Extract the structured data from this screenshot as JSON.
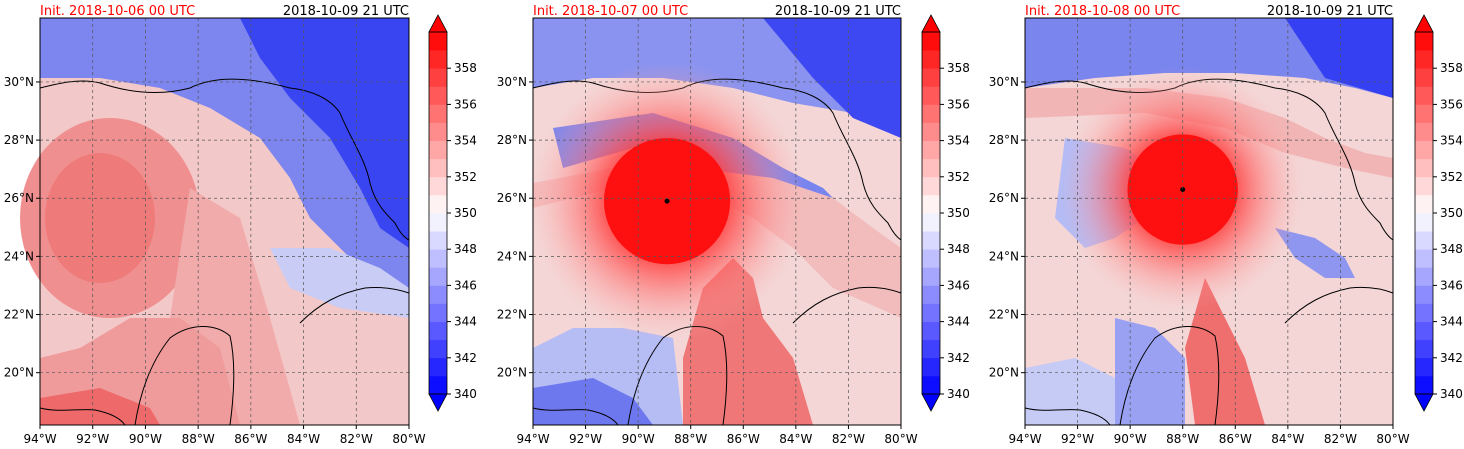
{
  "panels": [
    {
      "init_label": "Init. 2018-10-06 00 UTC",
      "valid_label": "2018-10-09 21 UTC",
      "storm": null
    },
    {
      "init_label": "Init. 2018-10-07 00 UTC",
      "valid_label": "2018-10-09 21 UTC",
      "storm": {
        "lon": -88.9,
        "lat": 25.9,
        "radius_deg": 0.8
      }
    },
    {
      "init_label": "Init. 2018-10-08 00 UTC",
      "valid_label": "2018-10-09 21 UTC",
      "storm": {
        "lon": -88.0,
        "lat": 26.3,
        "radius_deg": 0.7
      }
    }
  ],
  "axes": {
    "lon_min": -94,
    "lon_max": -80,
    "lat_min": 18.2,
    "lat_max": 32.2,
    "lon_ticks": [
      "94°W",
      "92°W",
      "90°W",
      "88°W",
      "86°W",
      "84°W",
      "82°W",
      "80°W"
    ],
    "lon_values": [
      -94,
      -92,
      -90,
      -88,
      -86,
      -84,
      -82,
      -80
    ],
    "lat_ticks": [
      "20°N",
      "22°N",
      "24°N",
      "26°N",
      "28°N",
      "30°N"
    ],
    "lat_values": [
      20,
      22,
      24,
      26,
      28,
      30
    ]
  },
  "colorbar": {
    "min": 340,
    "max": 360,
    "step": 1,
    "tick_labels": [
      "340",
      "342",
      "344",
      "346",
      "348",
      "350",
      "352",
      "354",
      "356",
      "358"
    ],
    "tick_values": [
      340,
      342,
      344,
      346,
      348,
      350,
      352,
      354,
      356,
      358
    ],
    "colors": {
      "low": "#0000ff",
      "mid": "#ffffff",
      "high": "#ff0000"
    }
  },
  "colors": {
    "init_text": "#ff0000",
    "valid_text": "#000000",
    "grid": "#555555"
  }
}
